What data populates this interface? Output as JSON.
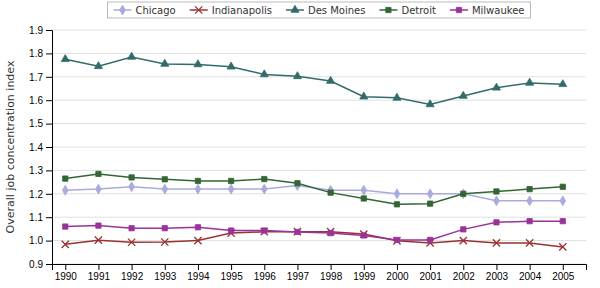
{
  "chart_data": {
    "type": "line",
    "y_label": "Overall job concentration index",
    "x": [
      1990,
      1991,
      1992,
      1993,
      1994,
      1995,
      1996,
      1997,
      1998,
      1999,
      2000,
      2001,
      2002,
      2003,
      2004,
      2005
    ],
    "series": [
      {
        "name": "Chicago",
        "color": "#aaaadd",
        "marker": "diamond",
        "values": [
          1.215,
          1.22,
          1.23,
          1.22,
          1.22,
          1.22,
          1.22,
          1.235,
          1.215,
          1.215,
          1.2,
          1.2,
          1.2,
          1.17,
          1.17,
          1.17
        ]
      },
      {
        "name": "Indianapolis",
        "color": "#993333",
        "marker": "x",
        "values": [
          0.984,
          1.002,
          0.993,
          0.994,
          1.0,
          1.032,
          1.038,
          1.038,
          1.038,
          1.028,
          0.999,
          0.99,
          1.0,
          0.99,
          0.99,
          0.973
        ]
      },
      {
        "name": "Des Moines",
        "color": "#336b6b",
        "marker": "triangle",
        "values": [
          1.775,
          1.745,
          1.785,
          1.755,
          1.753,
          1.743,
          1.71,
          1.702,
          1.682,
          1.615,
          1.61,
          1.582,
          1.618,
          1.653,
          1.674,
          1.668
        ]
      },
      {
        "name": "Detroit",
        "color": "#336633",
        "marker": "square",
        "values": [
          1.265,
          1.285,
          1.27,
          1.262,
          1.255,
          1.255,
          1.263,
          1.245,
          1.205,
          1.18,
          1.155,
          1.158,
          1.2,
          1.21,
          1.22,
          1.23
        ]
      },
      {
        "name": "Milwaukee",
        "color": "#993399",
        "marker": "square",
        "values": [
          1.06,
          1.064,
          1.053,
          1.053,
          1.057,
          1.043,
          1.043,
          1.037,
          1.032,
          1.022,
          1.003,
          1.003,
          1.048,
          1.078,
          1.083,
          1.083
        ]
      }
    ],
    "xlim": [
      1989.6,
      2005.7
    ],
    "xticks": [
      1990,
      1991,
      1992,
      1993,
      1994,
      1995,
      1996,
      1997,
      1998,
      1999,
      2000,
      2001,
      2002,
      2003,
      2004,
      2005
    ],
    "ylim": [
      0.9,
      1.9
    ],
    "yticks": [
      0.9,
      {
        "value": 1.0,
        "label": "1.0"
      },
      1.1,
      1.2,
      1.3,
      1.4,
      1.5,
      1.6,
      1.7,
      1.8,
      1.9
    ],
    "grid": true,
    "legend": "top"
  }
}
